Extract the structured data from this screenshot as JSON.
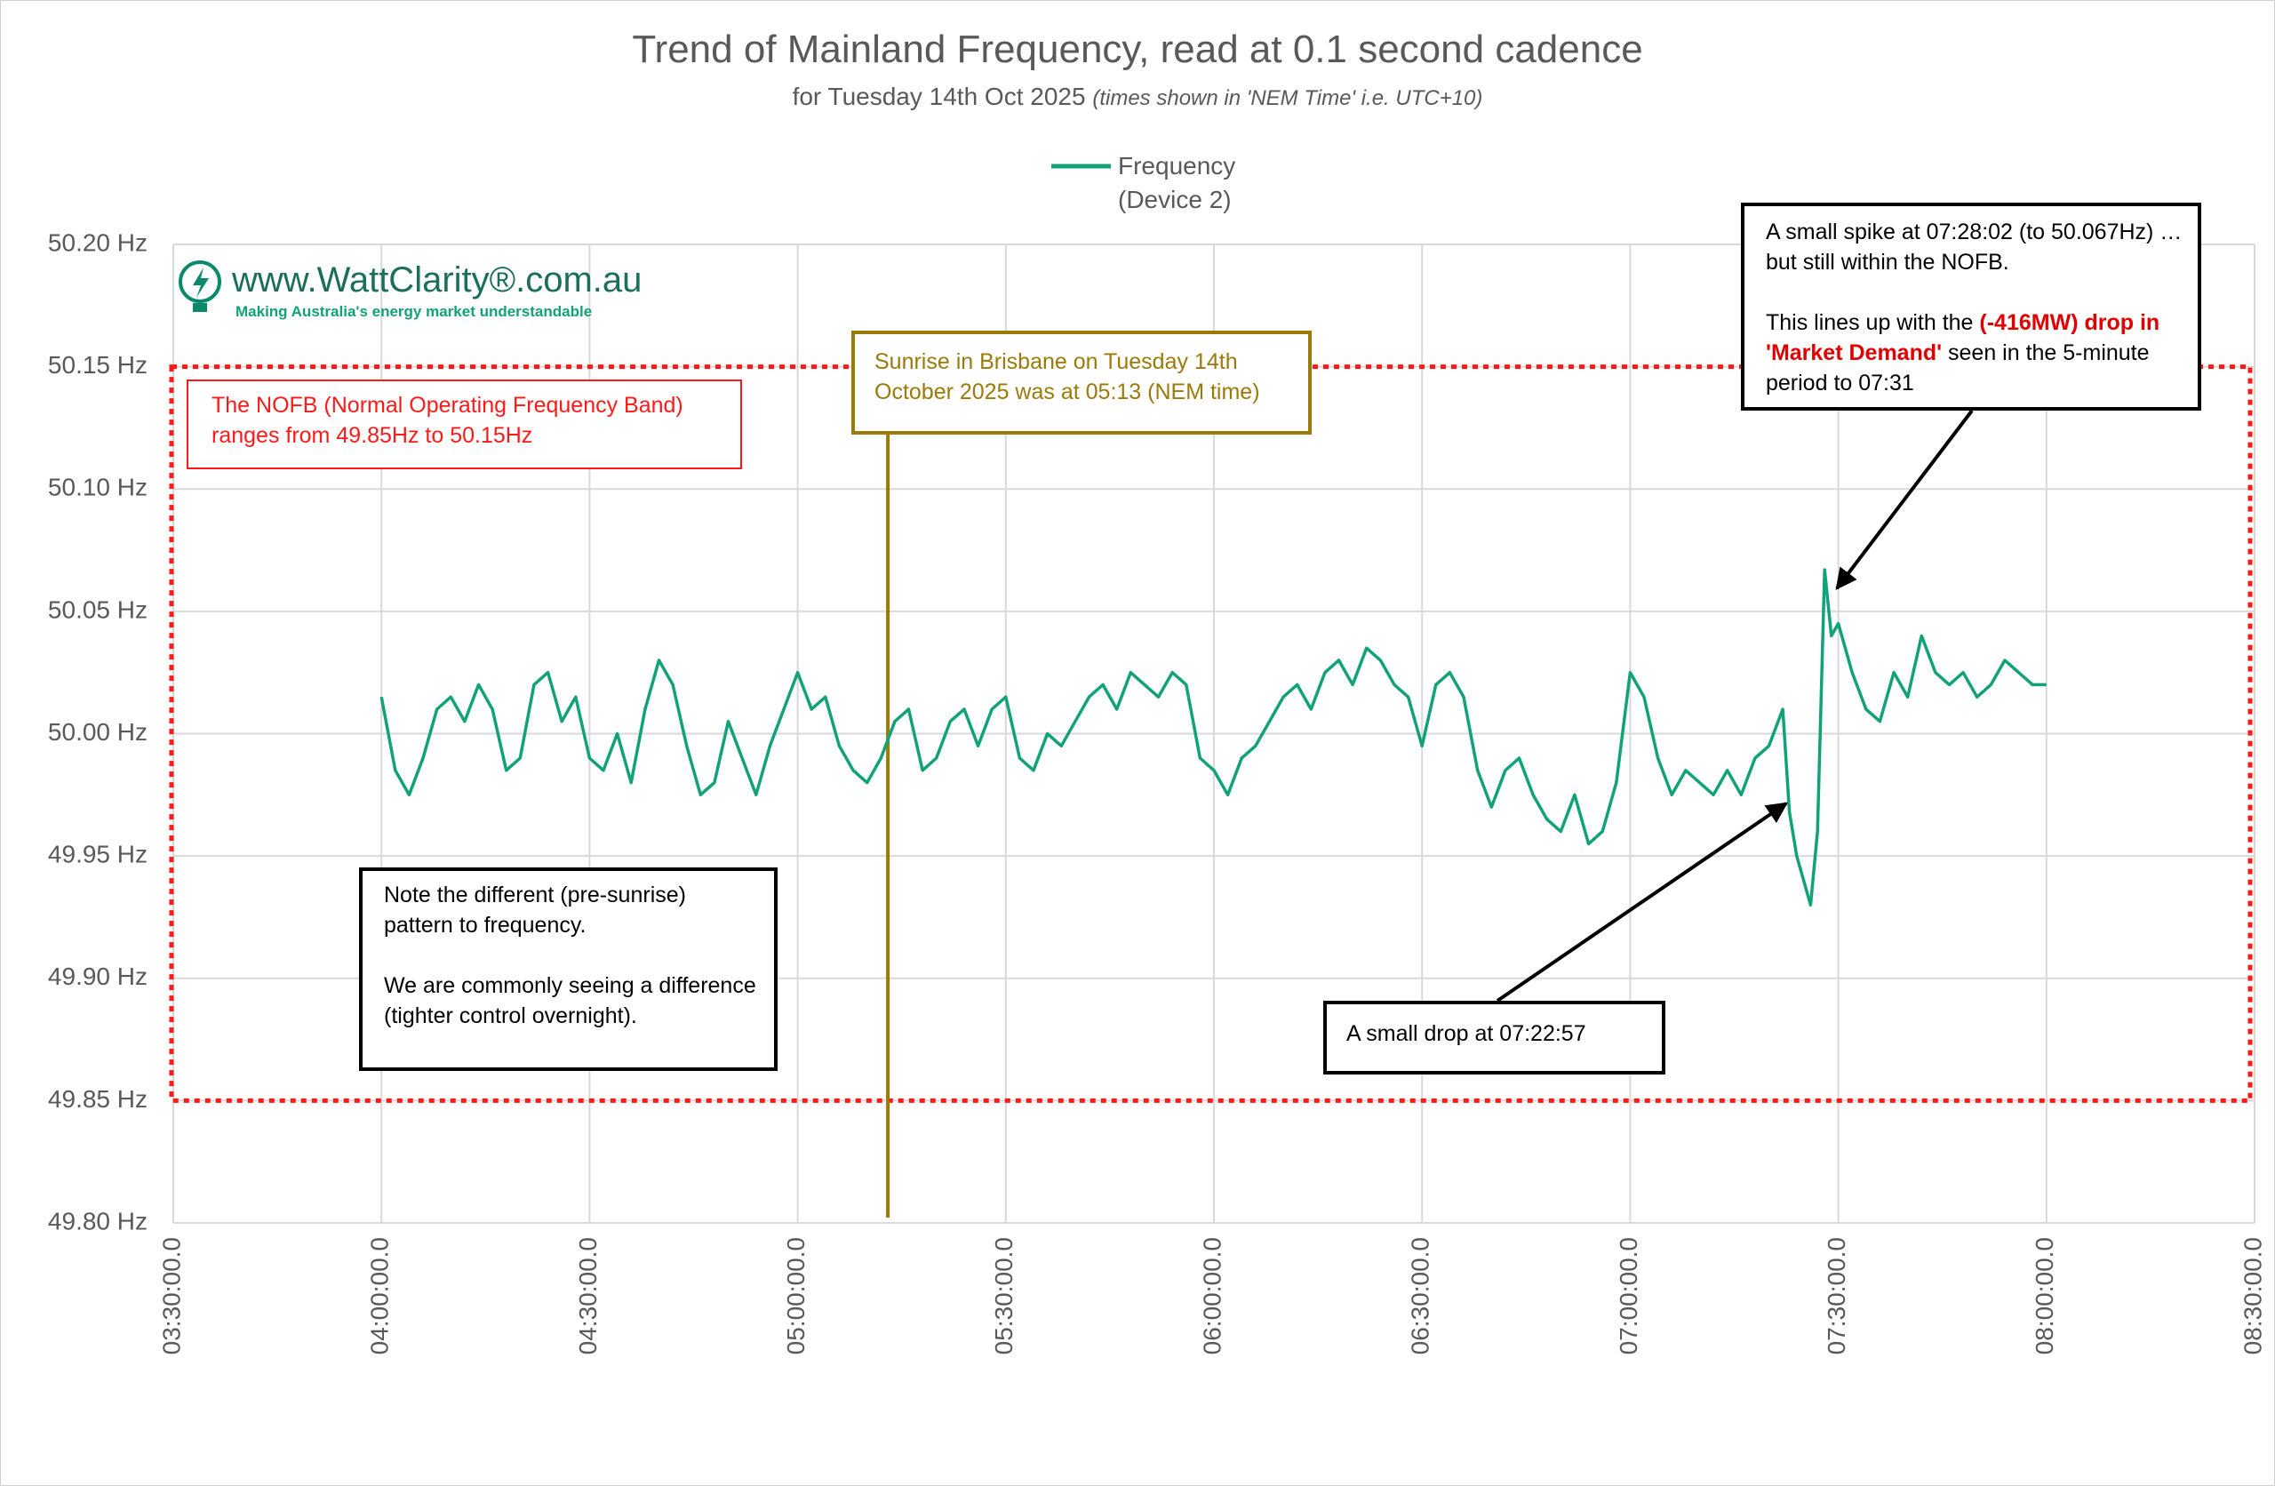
{
  "chart_data": {
    "type": "line",
    "title": "Trend of Mainland Frequency, read at 0.1 second cadence",
    "subtitle": "for Tuesday 14th Oct 2025",
    "subtitle_note": "(times shown in 'NEM Time' i.e. UTC+10)",
    "x": [
      "04:00:00.0",
      "04:02:00.0",
      "04:04:00.0",
      "04:06:00.0",
      "04:08:00.0",
      "04:10:00.0",
      "04:12:00.0",
      "04:14:00.0",
      "04:16:00.0",
      "04:18:00.0",
      "04:20:00.0",
      "04:22:00.0",
      "04:24:00.0",
      "04:26:00.0",
      "04:28:00.0",
      "04:30:00.0",
      "04:32:00.0",
      "04:34:00.0",
      "04:36:00.0",
      "04:38:00.0",
      "04:40:00.0",
      "04:42:00.0",
      "04:44:00.0",
      "04:46:00.0",
      "04:48:00.0",
      "04:50:00.0",
      "04:52:00.0",
      "04:54:00.0",
      "04:56:00.0",
      "04:58:00.0",
      "05:00:00.0",
      "05:02:00.0",
      "05:04:00.0",
      "05:06:00.0",
      "05:08:00.0",
      "05:10:00.0",
      "05:12:00.0",
      "05:14:00.0",
      "05:16:00.0",
      "05:18:00.0",
      "05:20:00.0",
      "05:22:00.0",
      "05:24:00.0",
      "05:26:00.0",
      "05:28:00.0",
      "05:30:00.0",
      "05:32:00.0",
      "05:34:00.0",
      "05:36:00.0",
      "05:38:00.0",
      "05:40:00.0",
      "05:42:00.0",
      "05:44:00.0",
      "05:46:00.0",
      "05:48:00.0",
      "05:50:00.0",
      "05:52:00.0",
      "05:54:00.0",
      "05:56:00.0",
      "05:58:00.0",
      "06:00:00.0",
      "06:02:00.0",
      "06:04:00.0",
      "06:06:00.0",
      "06:08:00.0",
      "06:10:00.0",
      "06:12:00.0",
      "06:14:00.0",
      "06:16:00.0",
      "06:18:00.0",
      "06:20:00.0",
      "06:22:00.0",
      "06:24:00.0",
      "06:26:00.0",
      "06:28:00.0",
      "06:30:00.0",
      "06:32:00.0",
      "06:34:00.0",
      "06:36:00.0",
      "06:38:00.0",
      "06:40:00.0",
      "06:42:00.0",
      "06:44:00.0",
      "06:46:00.0",
      "06:48:00.0",
      "06:50:00.0",
      "06:52:00.0",
      "06:54:00.0",
      "06:56:00.0",
      "06:58:00.0",
      "07:00:00.0",
      "07:02:00.0",
      "07:04:00.0",
      "07:06:00.0",
      "07:08:00.0",
      "07:10:00.0",
      "07:12:00.0",
      "07:14:00.0",
      "07:16:00.0",
      "07:18:00.0",
      "07:20:00.0",
      "07:22:00.0",
      "07:22:57.0",
      "07:24:00.0",
      "07:26:00.0",
      "07:27:00.0",
      "07:28:02.0",
      "07:29:00.0",
      "07:30:00.0",
      "07:32:00.0",
      "07:34:00.0",
      "07:36:00.0",
      "07:38:00.0",
      "07:40:00.0",
      "07:42:00.0",
      "07:44:00.0",
      "07:46:00.0",
      "07:48:00.0",
      "07:50:00.0",
      "07:52:00.0",
      "07:54:00.0",
      "07:56:00.0",
      "07:58:00.0",
      "08:00:00.0"
    ],
    "series": [
      {
        "name": "Frequency (Device 2)",
        "color": "#12a27a",
        "values": [
          50.015,
          49.985,
          49.975,
          49.99,
          50.01,
          50.015,
          50.005,
          50.02,
          50.01,
          49.985,
          49.99,
          50.02,
          50.025,
          50.005,
          50.015,
          49.99,
          49.985,
          50.0,
          49.98,
          50.01,
          50.03,
          50.02,
          49.995,
          49.975,
          49.98,
          50.005,
          49.99,
          49.975,
          49.995,
          50.01,
          50.025,
          50.01,
          50.015,
          49.995,
          49.985,
          49.98,
          49.99,
          50.005,
          50.01,
          49.985,
          49.99,
          50.005,
          50.01,
          49.995,
          50.01,
          50.015,
          49.99,
          49.985,
          50.0,
          49.995,
          50.005,
          50.015,
          50.02,
          50.01,
          50.025,
          50.02,
          50.015,
          50.025,
          50.02,
          49.99,
          49.985,
          49.975,
          49.99,
          49.995,
          50.005,
          50.015,
          50.02,
          50.01,
          50.025,
          50.03,
          50.02,
          50.035,
          50.03,
          50.02,
          50.015,
          49.995,
          50.02,
          50.025,
          50.015,
          49.985,
          49.97,
          49.985,
          49.99,
          49.975,
          49.965,
          49.96,
          49.975,
          49.955,
          49.96,
          49.98,
          50.025,
          50.015,
          49.99,
          49.975,
          49.985,
          49.98,
          49.975,
          49.985,
          49.975,
          49.99,
          49.995,
          50.01,
          49.968,
          49.95,
          49.93,
          49.96,
          50.067,
          50.04,
          50.045,
          50.025,
          50.01,
          50.005,
          50.025,
          50.015,
          50.04,
          50.025,
          50.02,
          50.025,
          50.015,
          50.02,
          50.03,
          50.025,
          50.02,
          50.02
        ]
      }
    ],
    "xlim": [
      "03:30:00.0",
      "08:30:00.0"
    ],
    "xticks": [
      "03:30:00.0",
      "04:00:00.0",
      "04:30:00.0",
      "05:00:00.0",
      "05:30:00.0",
      "06:00:00.0",
      "06:30:00.0",
      "07:00:00.0",
      "07:30:00.0",
      "08:00:00.0",
      "08:30:00.0"
    ],
    "ylim": [
      49.8,
      50.2
    ],
    "yticks": [
      {
        "value": 49.8,
        "label": "49.80 Hz"
      },
      {
        "value": 49.85,
        "label": "49.85 Hz"
      },
      {
        "value": 49.9,
        "label": "49.90 Hz"
      },
      {
        "value": 49.95,
        "label": "49.95 Hz"
      },
      {
        "value": 50.0,
        "label": "50.00 Hz"
      },
      {
        "value": 50.05,
        "label": "50.05 Hz"
      },
      {
        "value": 50.1,
        "label": "50.10 Hz"
      },
      {
        "value": 50.15,
        "label": "50.15 Hz"
      },
      {
        "value": 50.2,
        "label": "50.20 Hz"
      }
    ],
    "grid": true,
    "legend": "top",
    "annotations": {
      "logo": {
        "url": "www.WattClarity®.com.au",
        "tagline": "Making Australia's energy market understandable"
      },
      "nofb": {
        "lines": [
          "The NOFB  (Normal Operating Frequency Band)",
          "ranges from 49.85Hz to 50.15Hz"
        ],
        "lower": 49.85,
        "upper": 50.15,
        "color": "#ff1a1a"
      },
      "sunrise": {
        "lines": [
          "Sunrise in Brisbane on Tuesday 14th",
          "October 2025 was at 05:13 (NEM time)"
        ],
        "x": "05:13:00.0",
        "color": "#9c7a0a"
      },
      "pre_sunrise_note": {
        "paragraphs": [
          [
            "Note the different (pre-sunrise)",
            "pattern to frequency."
          ],
          [
            "We are commonly seeing a difference",
            "(tighter control overnight)."
          ]
        ]
      },
      "drop_note": {
        "text": "A small drop  at 07:22:57"
      },
      "spike_note": {
        "lines": [
          "A small spike at 07:28:02 (to 50.067Hz) …",
          "but still within the NOFB."
        ],
        "para2": [
          [
            {
              "text": "This lines up with the "
            },
            {
              "text": "(-416MW) drop in",
              "color": "#e00000"
            }
          ],
          [
            {
              "text": "'Market Demand'",
              "color": "#e00000"
            },
            {
              "text": " seen in the 5-minute"
            }
          ],
          [
            {
              "text": "period to 07:31"
            }
          ]
        ]
      }
    }
  }
}
